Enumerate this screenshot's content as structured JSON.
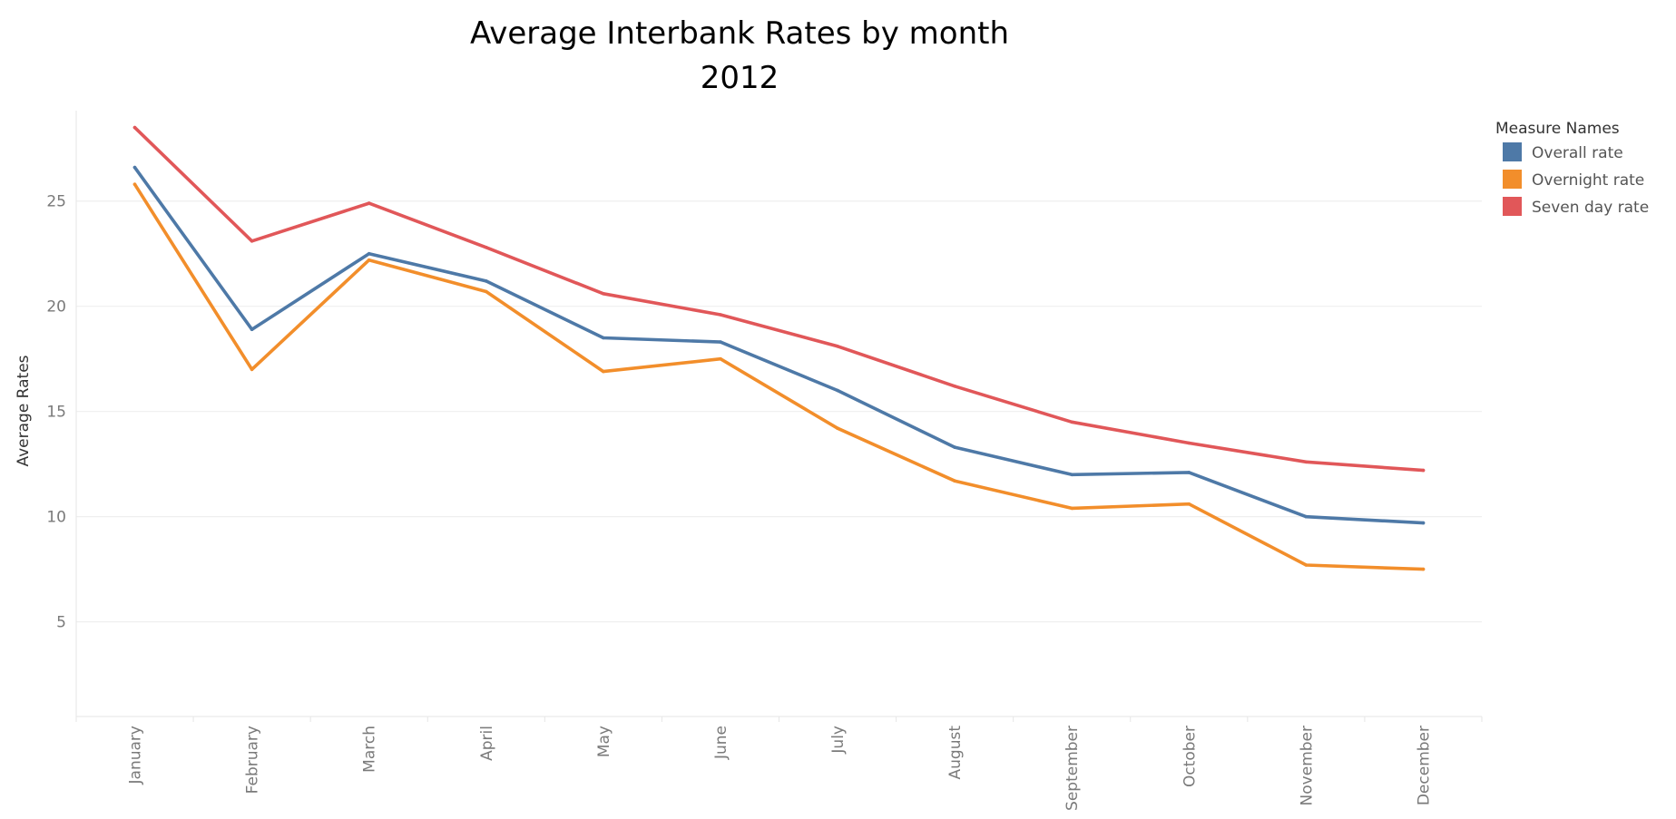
{
  "chart_data": {
    "type": "line",
    "title": [
      "Average Interbank Rates by month",
      "2012"
    ],
    "ylabel": "Average Rates",
    "xlabel": "",
    "categories": [
      "January",
      "February",
      "March",
      "April",
      "May",
      "June",
      "July",
      "August",
      "September",
      "October",
      "November",
      "December"
    ],
    "yticks": [
      5,
      10,
      15,
      20,
      25
    ],
    "ylim": [
      0.5,
      29.3
    ],
    "grid": true,
    "legend": {
      "title": "Measure Names",
      "position": "top-right"
    },
    "series": [
      {
        "name": "Overall rate",
        "color": "#4e79a7",
        "values": [
          26.6,
          18.9,
          22.5,
          21.2,
          18.5,
          18.3,
          16.0,
          13.3,
          12.0,
          12.1,
          10.0,
          9.7
        ]
      },
      {
        "name": "Overnight rate",
        "color": "#f28e2b",
        "values": [
          25.8,
          17.0,
          22.2,
          20.7,
          16.9,
          17.5,
          14.2,
          11.7,
          10.4,
          10.6,
          7.7,
          7.5
        ]
      },
      {
        "name": "Seven day rate",
        "color": "#e15759",
        "values": [
          28.5,
          23.1,
          24.9,
          22.8,
          20.6,
          19.6,
          18.1,
          16.2,
          14.5,
          13.5,
          12.6,
          12.2
        ]
      }
    ]
  }
}
